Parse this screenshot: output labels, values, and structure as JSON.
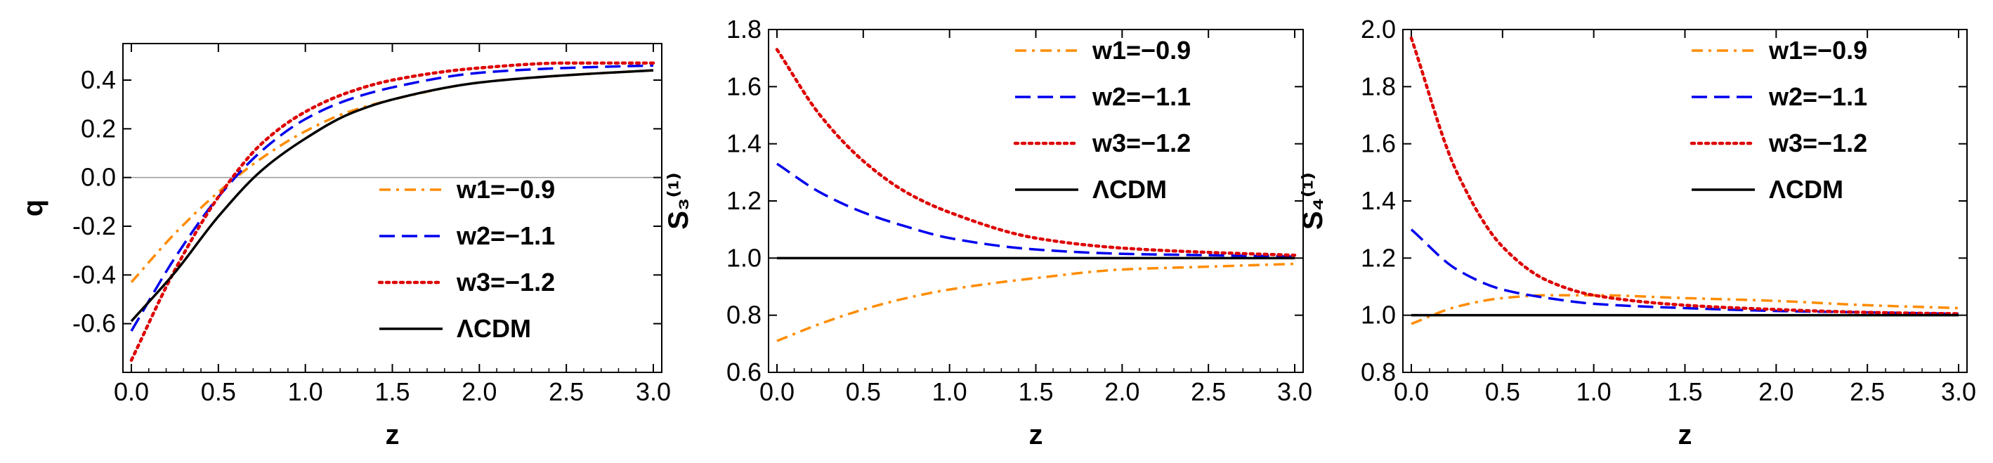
{
  "chart_data": [
    {
      "id": "q",
      "type": "line",
      "xlabel": "z",
      "ylabel": "q",
      "xlim": [
        0,
        3.0
      ],
      "ylim": [
        -0.8,
        0.55
      ],
      "xticks": [
        "0.0",
        "0.5",
        "1.0",
        "1.5",
        "2.0",
        "2.5",
        "3.0"
      ],
      "xtick_values": [
        0,
        0.5,
        1.0,
        1.5,
        2.0,
        2.5,
        3.0
      ],
      "yticks": [
        "-0.6",
        "-0.4",
        "-0.2",
        "0.0",
        "0.2",
        "0.4"
      ],
      "ytick_values": [
        -0.6,
        -0.4,
        -0.2,
        0.0,
        0.2,
        0.4
      ],
      "zero_line": 0.0,
      "legend_position": "center-right",
      "series": [
        {
          "name": "w1=−0.9",
          "color": "#ff8c00",
          "style": "dashdot",
          "x": [
            0,
            0.25,
            0.5,
            0.75,
            1.0,
            1.25,
            1.5,
            2.0,
            2.5,
            3.0
          ],
          "values": [
            -0.43,
            -0.23,
            -0.06,
            0.08,
            0.19,
            0.27,
            0.32,
            0.39,
            0.42,
            0.44
          ]
        },
        {
          "name": "w2=−1.1",
          "color": "#0000ee",
          "style": "dashed",
          "x": [
            0,
            0.25,
            0.5,
            0.75,
            1.0,
            1.25,
            1.5,
            2.0,
            2.5,
            3.0
          ],
          "values": [
            -0.63,
            -0.33,
            -0.08,
            0.11,
            0.24,
            0.32,
            0.37,
            0.43,
            0.45,
            0.46
          ]
        },
        {
          "name": "w3=−1.2",
          "color": "#dd0000",
          "style": "dotted",
          "x": [
            0,
            0.25,
            0.5,
            0.75,
            1.0,
            1.25,
            1.5,
            2.0,
            2.5,
            3.0
          ],
          "values": [
            -0.75,
            -0.38,
            -0.08,
            0.14,
            0.27,
            0.35,
            0.4,
            0.45,
            0.47,
            0.47
          ]
        },
        {
          "name": "ΛCDM",
          "color": "#000000",
          "style": "solid",
          "x": [
            0,
            0.25,
            0.5,
            0.75,
            1.0,
            1.25,
            1.5,
            2.0,
            2.5,
            3.0
          ],
          "values": [
            -0.59,
            -0.39,
            -0.16,
            0.03,
            0.16,
            0.26,
            0.32,
            0.39,
            0.42,
            0.44
          ]
        }
      ]
    },
    {
      "id": "s3",
      "type": "line",
      "xlabel": "z",
      "ylabel": "S₃⁽¹⁾",
      "xlim": [
        0,
        3.0
      ],
      "ylim": [
        0.6,
        1.8
      ],
      "xticks": [
        "0.0",
        "0.5",
        "1.0",
        "1.5",
        "2.0",
        "2.5",
        "3.0"
      ],
      "xtick_values": [
        0,
        0.5,
        1.0,
        1.5,
        2.0,
        2.5,
        3.0
      ],
      "yticks": [
        "0.6",
        "0.8",
        "1.0",
        "1.2",
        "1.4",
        "1.6",
        "1.8"
      ],
      "ytick_values": [
        0.6,
        0.8,
        1.0,
        1.2,
        1.4,
        1.6,
        1.8
      ],
      "zero_line": null,
      "legend_position": "top-right",
      "series": [
        {
          "name": "w1=−0.9",
          "color": "#ff8c00",
          "style": "dashdot",
          "x": [
            0,
            0.25,
            0.5,
            0.75,
            1.0,
            1.5,
            2.0,
            2.5,
            3.0
          ],
          "values": [
            0.71,
            0.77,
            0.82,
            0.86,
            0.89,
            0.93,
            0.96,
            0.97,
            0.98
          ]
        },
        {
          "name": "w2=−1.1",
          "color": "#0000ee",
          "style": "dashed",
          "x": [
            0,
            0.25,
            0.5,
            0.75,
            1.0,
            1.5,
            2.0,
            2.5,
            3.0
          ],
          "values": [
            1.33,
            1.23,
            1.16,
            1.11,
            1.07,
            1.03,
            1.015,
            1.01,
            1.005
          ]
        },
        {
          "name": "w3=−1.2",
          "color": "#dd0000",
          "style": "dotted",
          "x": [
            0,
            0.25,
            0.5,
            0.75,
            1.0,
            1.5,
            2.0,
            2.5,
            3.0
          ],
          "values": [
            1.73,
            1.5,
            1.34,
            1.23,
            1.16,
            1.07,
            1.035,
            1.02,
            1.01
          ]
        },
        {
          "name": "ΛCDM",
          "color": "#000000",
          "style": "solid",
          "x": [
            0,
            3.0
          ],
          "values": [
            1.0,
            1.0
          ]
        }
      ]
    },
    {
      "id": "s4",
      "type": "line",
      "xlabel": "z",
      "ylabel": "S₄⁽¹⁾",
      "xlim": [
        0,
        3.0
      ],
      "ylim": [
        0.8,
        2.0
      ],
      "xticks": [
        "0.0",
        "0.5",
        "1.0",
        "1.5",
        "2.0",
        "2.5",
        "3.0"
      ],
      "xtick_values": [
        0,
        0.5,
        1.0,
        1.5,
        2.0,
        2.5,
        3.0
      ],
      "yticks": [
        "0.8",
        "1.0",
        "1.2",
        "1.4",
        "1.6",
        "1.8",
        "2.0"
      ],
      "ytick_values": [
        0.8,
        1.0,
        1.2,
        1.4,
        1.6,
        1.8,
        2.0
      ],
      "zero_line": null,
      "legend_position": "top-right",
      "series": [
        {
          "name": "w1=−0.9",
          "color": "#ff8c00",
          "style": "dashdot",
          "x": [
            0,
            0.25,
            0.5,
            0.75,
            1.0,
            1.5,
            2.0,
            2.5,
            3.0
          ],
          "values": [
            0.97,
            1.03,
            1.06,
            1.07,
            1.07,
            1.06,
            1.05,
            1.035,
            1.025
          ]
        },
        {
          "name": "w2=−1.1",
          "color": "#0000ee",
          "style": "dashed",
          "x": [
            0,
            0.25,
            0.5,
            0.75,
            1.0,
            1.5,
            2.0,
            2.5,
            3.0
          ],
          "values": [
            1.3,
            1.16,
            1.09,
            1.06,
            1.04,
            1.025,
            1.015,
            1.01,
            1.005
          ]
        },
        {
          "name": "w3=−1.2",
          "color": "#dd0000",
          "style": "dotted",
          "x": [
            0,
            0.25,
            0.5,
            0.75,
            1.0,
            1.5,
            2.0,
            2.5,
            3.0
          ],
          "values": [
            1.97,
            1.5,
            1.24,
            1.12,
            1.07,
            1.035,
            1.02,
            1.01,
            1.005
          ]
        },
        {
          "name": "ΛCDM",
          "color": "#000000",
          "style": "solid",
          "x": [
            0,
            3.0
          ],
          "values": [
            1.0,
            1.0
          ]
        }
      ]
    }
  ]
}
